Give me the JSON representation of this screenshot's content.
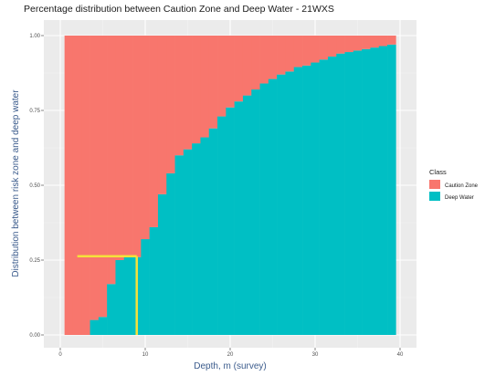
{
  "chart_data": {
    "type": "area",
    "title": "Percentage distribution between Caution Zone and Deep Water - 21WXS",
    "xlabel": "Depth, m (survey)",
    "ylabel": "Distribution between   risk zone and deep water",
    "xlim": [
      1,
      40
    ],
    "ylim": [
      0,
      1
    ],
    "x_ticks": [
      0,
      10,
      20,
      30,
      40
    ],
    "x_tick_labels": [
      "0",
      "10",
      "20",
      "30",
      "40"
    ],
    "y_ticks": [
      0,
      0.25,
      0.5,
      0.75,
      1
    ],
    "y_tick_labels": [
      "0.00",
      "0.25",
      "0.50",
      "0.75",
      "1.00"
    ],
    "grid": true,
    "legend": {
      "title": "Class",
      "position": "right",
      "entries": [
        {
          "name": "Caution Zone",
          "color": "#F8766D"
        },
        {
          "name": "Deep Water",
          "color": "#00BFC4"
        }
      ]
    },
    "bin_width": 1,
    "x": [
      1,
      2,
      3,
      4,
      5,
      6,
      7,
      8,
      9,
      10,
      11,
      12,
      13,
      14,
      15,
      16,
      17,
      18,
      19,
      20,
      21,
      22,
      23,
      24,
      25,
      26,
      27,
      28,
      29,
      30,
      31,
      32,
      33,
      34,
      35,
      36,
      37,
      38,
      39
    ],
    "series": [
      {
        "name": "Deep Water",
        "values": [
          0,
          0,
          0,
          0.05,
          0.06,
          0.17,
          0.25,
          0.26,
          0.26,
          0.32,
          0.36,
          0.47,
          0.54,
          0.6,
          0.62,
          0.64,
          0.66,
          0.69,
          0.73,
          0.76,
          0.78,
          0.8,
          0.82,
          0.84,
          0.855,
          0.87,
          0.88,
          0.895,
          0.9,
          0.91,
          0.92,
          0.93,
          0.94,
          0.945,
          0.95,
          0.955,
          0.96,
          0.965,
          0.97
        ]
      },
      {
        "name": "Caution Zone",
        "values": [
          1,
          1,
          1,
          0.95,
          0.94,
          0.83,
          0.75,
          0.74,
          0.74,
          0.68,
          0.64,
          0.53,
          0.46,
          0.4,
          0.38,
          0.36,
          0.34,
          0.31,
          0.27,
          0.24,
          0.22,
          0.2,
          0.18,
          0.16,
          0.145,
          0.13,
          0.12,
          0.105,
          0.1,
          0.09,
          0.08,
          0.07,
          0.06,
          0.055,
          0.05,
          0.045,
          0.04,
          0.035,
          0.03
        ]
      }
    ],
    "annotation": {
      "color": "#F5E13A",
      "threshold_x": 9,
      "threshold_y": 0.263,
      "from_x": 2
    }
  },
  "colors": {
    "panel_background": "#EBEBEB",
    "grid_major": "#FFFFFF",
    "grid_minor": "#F4F4F4"
  }
}
